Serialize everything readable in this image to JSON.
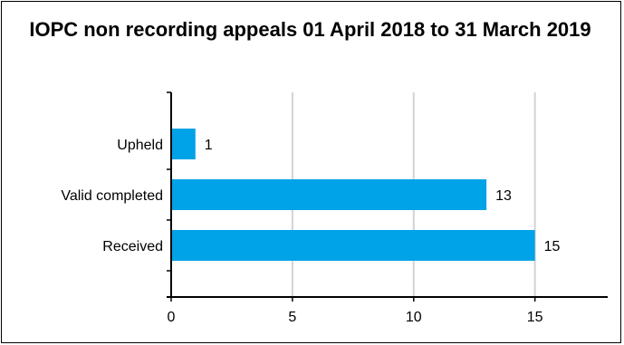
{
  "chart_data": {
    "type": "bar",
    "orientation": "horizontal",
    "title": "IOPC non recording appeals 01 April 2018 to 31 March 2019",
    "categories": [
      "Upheld",
      "Valid completed",
      "Received"
    ],
    "values": [
      1,
      13,
      15
    ],
    "data_labels": [
      "1",
      "13",
      "15"
    ],
    "xlabel": "",
    "ylabel": "",
    "xlim": [
      0,
      18
    ],
    "x_ticks": [
      0,
      5,
      10,
      15
    ],
    "x_tick_labels": [
      "0",
      "5",
      "10",
      "15"
    ],
    "grid": true,
    "legend": "none",
    "bar_color": "#00a2e8",
    "grid_color": "#d3d3d3",
    "axis_color": "#000000"
  }
}
